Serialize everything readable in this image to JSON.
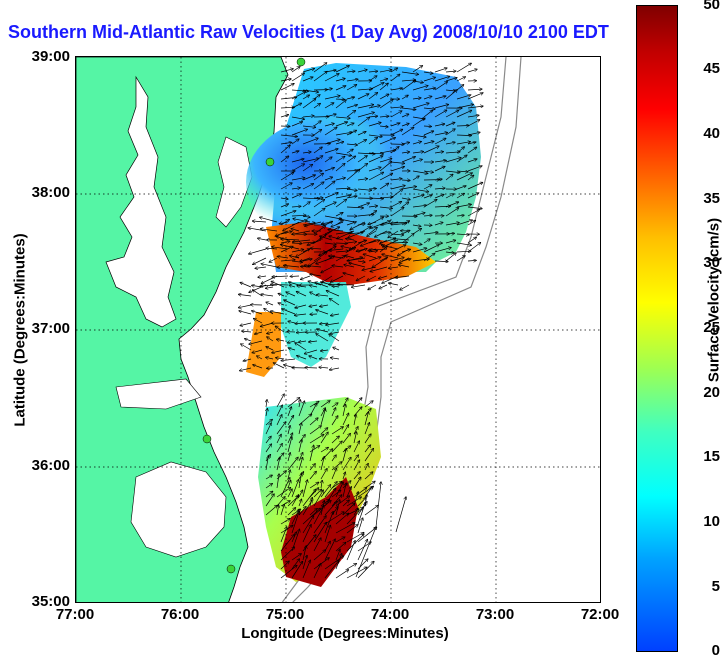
{
  "title": "Southern Mid-Atlantic Raw Velocities (1 Day Avg) 2008/10/10 2100 EDT",
  "map": {
    "lon_range": [
      77,
      72
    ],
    "lat_range": [
      35,
      39
    ],
    "lat_ticks": [
      "39:00",
      "38:00",
      "37:00",
      "36:00",
      "35:00"
    ],
    "lon_ticks": [
      "77:00",
      "76:00",
      "75:00",
      "74:00",
      "73:00",
      "72:00"
    ],
    "grid": true,
    "land_color": "#55f5a5",
    "x_axis_title": "Longitude (Degrees:Minutes)",
    "y_axis_title": "Latitude (Degrees:Minutes)"
  },
  "colorbar": {
    "title": "Surface Velocity (cm/s)",
    "min": 0,
    "max": 50,
    "ticks": [
      "50",
      "45",
      "40",
      "35",
      "30",
      "25",
      "20",
      "15",
      "10",
      "5",
      "0"
    ],
    "colormap": "jet"
  },
  "stations_icon": "green-dot-icon"
}
